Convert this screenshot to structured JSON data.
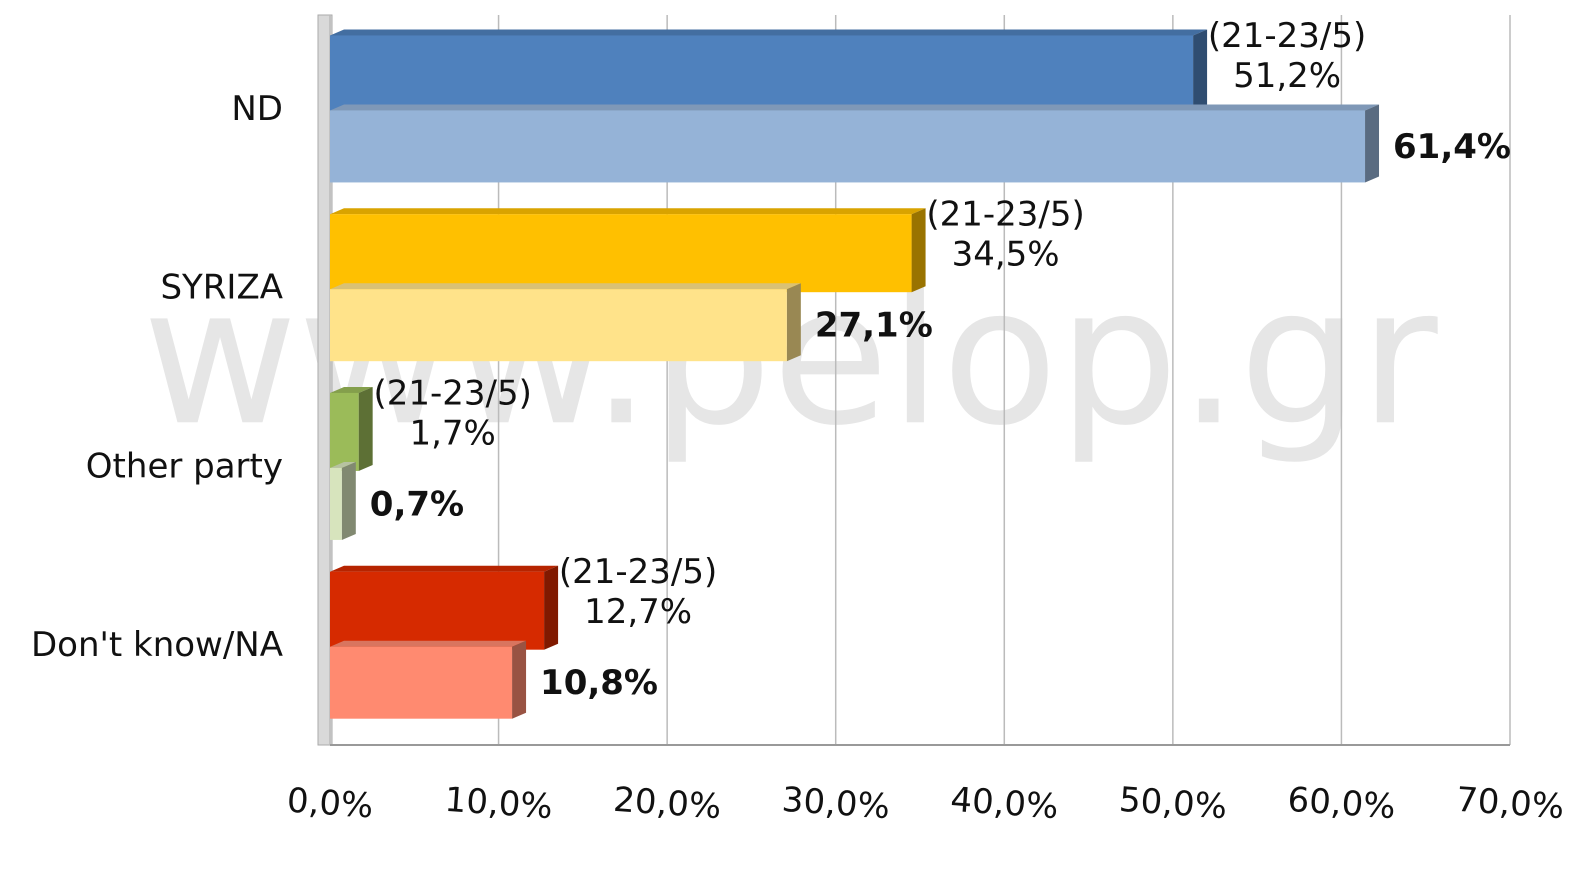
{
  "chart_data": {
    "type": "bar",
    "orientation": "horizontal",
    "watermark": "www.pelop.gr",
    "categories": [
      "ND",
      "SYRIZA",
      "Other party",
      "Don't know/NA"
    ],
    "series": [
      {
        "name": "(21-23/5)",
        "colors": [
          "#4f81bd",
          "#ffc000",
          "#9bbb59",
          "#d62a00"
        ],
        "values": [
          51.2,
          34.5,
          1.7,
          12.7
        ],
        "value_labels": [
          "51,2%",
          "34,5%",
          "1,7%",
          "12,7%"
        ]
      },
      {
        "colors": [
          "#95b3d7",
          "#ffe38a",
          "#d7e4bd",
          "#ff8a70"
        ],
        "values": [
          61.4,
          27.1,
          0.7,
          10.8
        ],
        "value_labels": [
          "61,4%",
          "27,1%",
          "0,7%",
          "10,8%"
        ]
      }
    ],
    "xlim": [
      0,
      70
    ],
    "xticks": [
      {
        "value": 0,
        "label": "0,0%"
      },
      {
        "value": 10,
        "label": "10,0%"
      },
      {
        "value": 20,
        "label": "20,0%"
      },
      {
        "value": 30,
        "label": "30,0%"
      },
      {
        "value": 40,
        "label": "40,0%"
      },
      {
        "value": 50,
        "label": "50,0%"
      },
      {
        "value": 60,
        "label": "60,0%"
      },
      {
        "value": 70,
        "label": "70,0%"
      }
    ],
    "grid": true
  }
}
